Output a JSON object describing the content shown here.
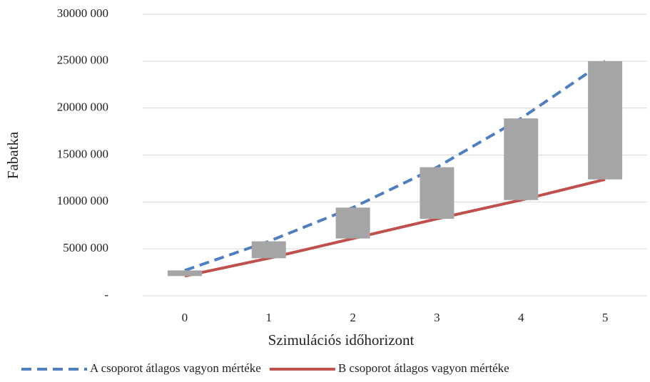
{
  "chart_data": {
    "type": "line",
    "up_down_bars": true,
    "bar_color": "#a5a5a5",
    "x_label": "Szimulációs időhorizont",
    "y_label": "Fabatka",
    "categories": [
      "0",
      "1",
      "2",
      "3",
      "4",
      "5"
    ],
    "series": [
      {
        "name": "A csoporot átlagos vagyon mértéke",
        "color": "#4f7fc0",
        "dashed": true,
        "values": [
          2700000,
          5800000,
          9400000,
          13700000,
          18900000,
          25000000
        ]
      },
      {
        "name": "B csoporot átlagos vagyon mértéke",
        "color": "#c0504d",
        "dashed": false,
        "values": [
          2100000,
          4000000,
          6100000,
          8200000,
          10200000,
          12400000
        ]
      }
    ],
    "ylim": [
      0,
      30000000
    ],
    "yticks": [
      {
        "value": 0,
        "label": "-"
      },
      {
        "value": 5000000,
        "label": "5000 000"
      },
      {
        "value": 10000000,
        "label": "10000 000"
      },
      {
        "value": 15000000,
        "label": "15000 000"
      },
      {
        "value": 20000000,
        "label": "20000 000"
      },
      {
        "value": 25000000,
        "label": "25000 000"
      },
      {
        "value": 30000000,
        "label": "30000 000"
      }
    ],
    "grid": true,
    "legend": "bottom"
  }
}
